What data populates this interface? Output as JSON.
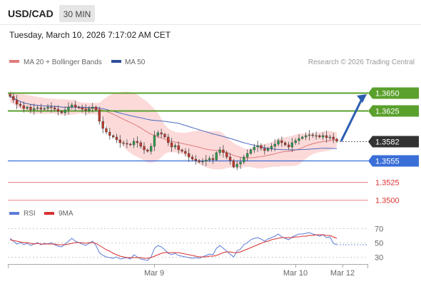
{
  "header": {
    "symbol": "USD/CAD",
    "timeframe": "30 MIN",
    "datetime": "Tuesday, March 10, 2026 7:17:02 AM CET"
  },
  "legend": {
    "ma20_bollinger": "MA 20 + Bollinger Bands",
    "ma50": "MA 50",
    "copyright": "Research © 2026 Trading Central",
    "rsi": "RSI",
    "rsi_ma": "9MA"
  },
  "colors": {
    "bull_candle": "#2e9e4f",
    "bear_candle": "#c0392b",
    "ma20": "#e07b7b",
    "bollinger_fill": "#fbd3d3",
    "ma50": "#4a6cc0",
    "resistance": "#5aa02c",
    "support_main": "#3a6fd8",
    "support_minor": "#e06060",
    "current_price_bg": "#333333",
    "arrow": "#2a5db0",
    "rsi_line": "#5b7bd8",
    "rsi_ma_line": "#d83030",
    "timeframe_bg": "#e6e6e6"
  },
  "chart_data": [
    {
      "type": "candlestick",
      "title": "USD/CAD",
      "timeframe": "30 MIN",
      "ylim": [
        1.349,
        1.368
      ],
      "xaxis_labels": [
        "Mar 9",
        "Mar 10",
        "Mar 12"
      ],
      "overlays": [
        "MA 20 + Bollinger Bands",
        "MA 50"
      ],
      "current_price": 1.3582,
      "levels": [
        {
          "value": 1.365,
          "label": "1.3650",
          "kind": "resistance"
        },
        {
          "value": 1.3625,
          "label": "1.3625",
          "kind": "resistance"
        },
        {
          "value": 1.3582,
          "label": "1.3582",
          "kind": "current"
        },
        {
          "value": 1.3555,
          "label": "1.3555",
          "kind": "support_main"
        },
        {
          "value": 1.3525,
          "label": "1.3525",
          "kind": "support_minor"
        },
        {
          "value": 1.35,
          "label": "1.3500",
          "kind": "support_minor"
        }
      ],
      "forecast": {
        "from": 1.3582,
        "to": 1.365
      },
      "close_series": [
        1.3645,
        1.364,
        1.3634,
        1.3632,
        1.3628,
        1.363,
        1.3626,
        1.3628,
        1.3629,
        1.3627,
        1.3628,
        1.363,
        1.3629,
        1.3627,
        1.3624,
        1.3622,
        1.3626,
        1.363,
        1.3633,
        1.363,
        1.3629,
        1.3627,
        1.3625,
        1.3628,
        1.363,
        1.3626,
        1.361,
        1.36,
        1.3595,
        1.359,
        1.3588,
        1.3584,
        1.358,
        1.3579,
        1.3578,
        1.3577,
        1.3582,
        1.358,
        1.3575,
        1.357,
        1.3568,
        1.3575,
        1.359,
        1.3594,
        1.3592,
        1.3588,
        1.358,
        1.3574,
        1.3576,
        1.357,
        1.3568,
        1.3565,
        1.356,
        1.3557,
        1.3555,
        1.3553,
        1.3554,
        1.3556,
        1.3558,
        1.3556,
        1.3566,
        1.357,
        1.3566,
        1.356,
        1.3555,
        1.3546,
        1.355,
        1.3553,
        1.356,
        1.3565,
        1.357,
        1.3574,
        1.3576,
        1.3572,
        1.3569,
        1.3572,
        1.3575,
        1.3578,
        1.3583,
        1.358,
        1.3577,
        1.3574,
        1.358,
        1.3583,
        1.3586,
        1.3588,
        1.359,
        1.3591,
        1.359,
        1.359,
        1.3588,
        1.359,
        1.3587,
        1.3588,
        1.3585,
        1.3582
      ]
    },
    {
      "type": "line",
      "title": "RSI",
      "series": [
        {
          "name": "RSI"
        },
        {
          "name": "9MA"
        }
      ],
      "ylim": [
        20,
        80
      ],
      "yticks": [
        70,
        50,
        30
      ],
      "rsi_values": [
        56,
        52,
        48,
        50,
        47,
        49,
        46,
        48,
        50,
        47,
        49,
        48,
        50,
        47,
        45,
        44,
        48,
        52,
        56,
        52,
        50,
        48,
        46,
        49,
        52,
        46,
        36,
        32,
        30,
        29,
        28,
        30,
        27,
        28,
        29,
        27,
        33,
        30,
        27,
        26,
        25,
        30,
        42,
        46,
        44,
        40,
        35,
        33,
        35,
        32,
        31,
        30,
        29,
        28,
        29,
        28,
        30,
        32,
        34,
        33,
        42,
        46,
        42,
        38,
        34,
        30,
        38,
        41,
        47,
        50,
        54,
        56,
        57,
        55,
        52,
        55,
        57,
        59,
        62,
        58,
        56,
        54,
        58,
        60,
        62,
        62,
        63,
        64,
        62,
        61,
        59,
        61,
        57,
        58,
        49,
        47
      ],
      "rsi_ma_values": [
        54,
        53,
        52,
        51,
        50,
        50,
        49,
        48,
        49,
        48,
        48,
        48,
        48,
        48,
        47,
        47,
        47,
        48,
        49,
        50,
        50,
        50,
        49,
        50,
        50,
        49,
        46,
        43,
        40,
        38,
        35,
        33,
        31,
        30,
        29,
        29,
        29,
        29,
        29,
        28,
        28,
        29,
        31,
        33,
        35,
        36,
        36,
        36,
        36,
        36,
        35,
        34,
        33,
        32,
        31,
        30,
        30,
        30,
        31,
        31,
        32,
        34,
        36,
        37,
        37,
        36,
        36,
        37,
        39,
        41,
        43,
        45,
        47,
        49,
        51,
        52,
        54,
        55,
        56,
        57,
        57,
        57,
        57,
        58,
        58,
        59,
        59,
        60,
        60,
        61,
        61,
        61,
        60,
        60,
        58,
        56
      ]
    }
  ]
}
